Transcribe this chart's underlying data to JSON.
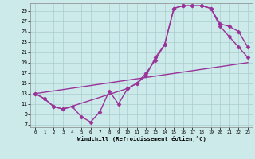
{
  "xlabel": "Windchill (Refroidissement éolien,°C)",
  "bg_color": "#cceaea",
  "grid_color": "#aacccc",
  "line_color": "#993399",
  "xlim": [
    -0.5,
    23.5
  ],
  "ylim": [
    6.5,
    30.5
  ],
  "yticks": [
    7,
    9,
    11,
    13,
    15,
    17,
    19,
    21,
    23,
    25,
    27,
    29
  ],
  "xticks": [
    0,
    1,
    2,
    3,
    4,
    5,
    6,
    7,
    8,
    9,
    10,
    11,
    12,
    13,
    14,
    15,
    16,
    17,
    18,
    19,
    20,
    21,
    22,
    23
  ],
  "curve1_x": [
    0,
    1,
    2,
    3,
    4,
    5,
    6,
    7,
    8,
    9,
    10,
    11,
    12,
    13,
    14,
    15,
    16,
    17,
    18,
    19,
    20,
    21,
    22,
    23
  ],
  "curve1_y": [
    13,
    12,
    10.5,
    10,
    10.5,
    8.5,
    7.5,
    9.5,
    13.5,
    11,
    14,
    15,
    17,
    19.5,
    22.5,
    29.5,
    30,
    30,
    30,
    29.5,
    26,
    24,
    22,
    20
  ],
  "curve2_x": [
    0,
    1,
    2,
    3,
    10,
    11,
    12,
    13,
    14,
    15,
    16,
    17,
    18,
    19,
    20,
    21,
    22,
    23
  ],
  "curve2_y": [
    13,
    12,
    10.5,
    10,
    14,
    15,
    16.5,
    20,
    22.5,
    29.5,
    30,
    30,
    30,
    29.5,
    26.5,
    26,
    25,
    22
  ],
  "curve3_x": [
    0,
    23
  ],
  "curve3_y": [
    13,
    19
  ],
  "marker": "D",
  "markersize": 2.5,
  "linewidth": 1.0
}
